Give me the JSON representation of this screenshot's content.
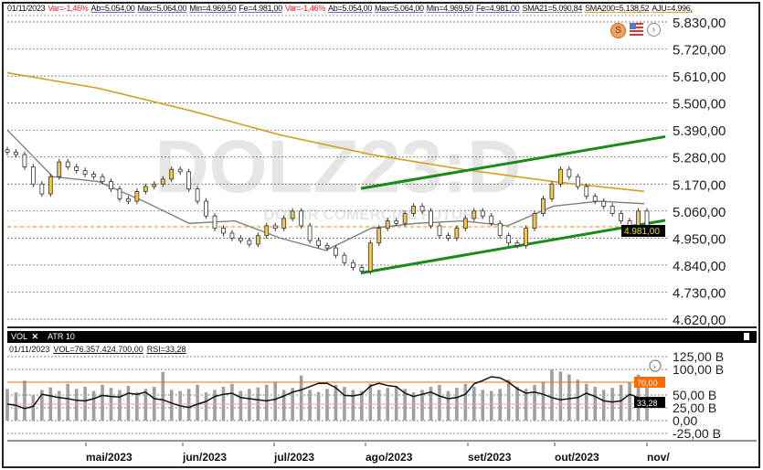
{
  "header": {
    "date": "01/11/2023",
    "var": "Var=-1,46%",
    "ab": "Ab=5.054,00",
    "max": "Max=5.064,00",
    "min": "Min=4.969,50",
    "fe": "Fe=4.981,00",
    "sma21": "SMA21=5.090,84",
    "sma200": "SMA200=5.138,52",
    "aju": "AJU=4.996,"
  },
  "watermark": {
    "symbol": "DOLZ23:D",
    "name": "DOLAR COMERCIAL FUTURO"
  },
  "tabs": [
    {
      "label": "VOL",
      "close": "✕"
    },
    {
      "label": "ATR 10"
    }
  ],
  "volume_info": {
    "date": "01/11/2023",
    "vol": "VOL=76.357.424.700,00",
    "rsi": "RSI=33,28"
  },
  "colors": {
    "up": "#f2c94c",
    "down": "#ffffff",
    "sma200": "#d4a020",
    "sma21": "#808080",
    "trend": "#1a8a1a",
    "aju": "#f0a030",
    "rsi70": "#ff6a00",
    "volume": "#a0a0a0"
  },
  "chart_data": [
    {
      "type": "candlestick",
      "ylim": [
        4620,
        5830
      ],
      "y_ticks": [
        "5.830,00",
        "5.720,00",
        "5.610,00",
        "5.500,00",
        "5.390,00",
        "5.280,00",
        "5.170,00",
        "5.060,00",
        "4.950,00",
        "4.840,00",
        "4.730,00",
        "4.620,00"
      ],
      "y_tick_values": [
        5830,
        5720,
        5610,
        5500,
        5390,
        5280,
        5170,
        5060,
        4950,
        4840,
        4730,
        4620
      ],
      "last_label": "4.981,00",
      "last_value": 4981,
      "aju_value": 4996,
      "closes": [
        5300,
        5290,
        5240,
        5170,
        5130,
        5200,
        5260,
        5240,
        5225,
        5210,
        5200,
        5180,
        5150,
        5110,
        5100,
        5140,
        5160,
        5170,
        5190,
        5230,
        5220,
        5150,
        5100,
        5040,
        4990,
        4970,
        4950,
        4940,
        4925,
        4960,
        5000,
        4990,
        5030,
        5060,
        5000,
        4940,
        4920,
        4910,
        4880,
        4850,
        4830,
        4815,
        4930,
        4990,
        5020,
        5010,
        5050,
        5080,
        5060,
        5000,
        4960,
        4950,
        4990,
        5030,
        5060,
        5040,
        5010,
        4960,
        4930,
        4920,
        4990,
        5050,
        5110,
        5170,
        5230,
        5200,
        5160,
        5120,
        5100,
        5080,
        5050,
        5020,
        4980,
        5060,
        4981
      ],
      "sma200": [
        5623,
        5560,
        5470,
        5370,
        5290,
        5230,
        5180,
        5140
      ],
      "sma21": [
        5390,
        5200,
        5180,
        5100,
        5010,
        5020,
        4950,
        4900,
        4990,
        5010,
        5020,
        5000,
        5080,
        5100,
        5090
      ],
      "trend_upper": [
        5152,
        5363
      ],
      "trend_lower": [
        4808,
        5022
      ]
    },
    {
      "type": "bar+line",
      "ylim": [
        -25,
        125
      ],
      "y_ticks": [
        "125,00 B",
        "100,00 B",
        "50,00 B",
        "25,00 B",
        "0,00",
        "-25,00 B"
      ],
      "y_tick_values": [
        125,
        100,
        50,
        25,
        0,
        -25
      ],
      "rsi_labels": {
        "upper": "70,00",
        "last": "33,28"
      },
      "rsi_upper": 70,
      "rsi_last": 33.28,
      "volume_B": [
        62,
        55,
        78,
        50,
        60,
        65,
        58,
        72,
        62,
        66,
        58,
        70,
        64,
        60,
        68,
        55,
        62,
        66,
        95,
        60,
        58,
        62,
        70,
        55,
        60,
        66,
        72,
        58,
        62,
        65,
        70,
        75,
        60,
        64,
        88,
        60,
        56,
        62,
        70,
        66,
        60,
        58,
        72,
        60,
        64,
        68,
        62,
        55,
        60,
        66,
        70,
        58,
        64,
        72,
        66,
        60,
        58,
        62,
        80,
        66,
        62,
        70,
        75,
        100,
        96,
        90,
        80,
        72,
        66,
        60,
        64,
        70,
        75,
        90,
        66
      ],
      "rsi": [
        30,
        28,
        22,
        26,
        48,
        45,
        42,
        40,
        37,
        36,
        40,
        46,
        44,
        43,
        50,
        48,
        52,
        40,
        38,
        32,
        27,
        24,
        30,
        35,
        44,
        48,
        50,
        42,
        40,
        38,
        36,
        39,
        45,
        52,
        56,
        62,
        68,
        68,
        60,
        46,
        45,
        48,
        63,
        68,
        64,
        62,
        50,
        44,
        48,
        52,
        45,
        40,
        42,
        48,
        67,
        73,
        80,
        78,
        70,
        58,
        50,
        52,
        48,
        42,
        38,
        40,
        42,
        50,
        44,
        36,
        34,
        36,
        48,
        42,
        33.28
      ]
    },
    {
      "type": "axis",
      "x_ticks": [
        "mai/2023",
        "jun/2023",
        "jul/2023",
        "ago/2023",
        "set/2023",
        "out/2023",
        "nov/"
      ]
    }
  ]
}
